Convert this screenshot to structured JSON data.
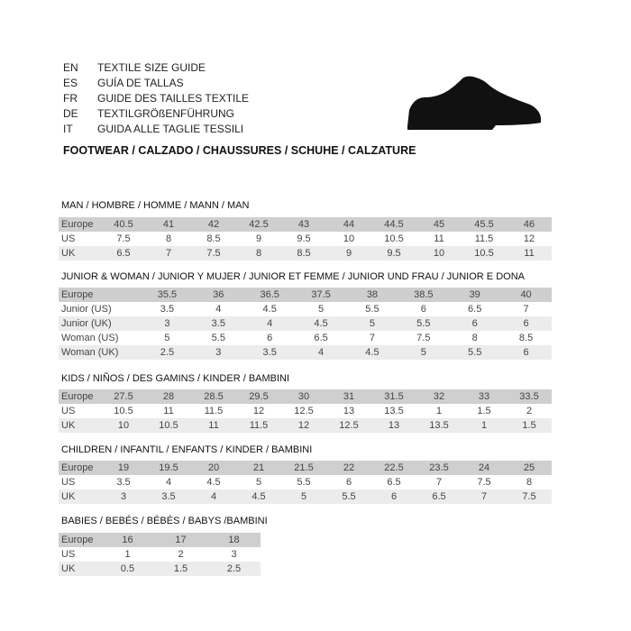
{
  "header": {
    "languages": [
      {
        "code": "EN",
        "text": "TEXTILE SIZE GUIDE"
      },
      {
        "code": "ES",
        "text": "GUÍA DE TALLAS"
      },
      {
        "code": "FR",
        "text": "GUIDE DES TAILLES TEXTILE"
      },
      {
        "code": "DE",
        "text": "TEXTILGRÖßENFÜHRUNG"
      },
      {
        "code": "IT",
        "text": "GUIDA ALLE TAGLIE TESSILI"
      }
    ],
    "footwear": "FOOTWEAR / CALZADO / CHAUSSURES / SCHUHE / CALZATURE",
    "icon": "shoe-icon"
  },
  "sections": [
    {
      "title": "MAN / HOMBRE / HOMME / MANN / MAN",
      "rows": [
        [
          "Europe",
          "40.5",
          "41",
          "42",
          "42.5",
          "43",
          "44",
          "44.5",
          "45",
          "45.5",
          "46"
        ],
        [
          "US",
          "7.5",
          "8",
          "8.5",
          "9",
          "9.5",
          "10",
          "10.5",
          "11",
          "11.5",
          "12"
        ],
        [
          "UK",
          "6.5",
          "7",
          "7.5",
          "8",
          "8.5",
          "9",
          "9.5",
          "10",
          "10.5",
          "11"
        ]
      ]
    },
    {
      "title": "JUNIOR & WOMAN / JUNIOR Y MUJER / JUNIOR ET FEMME / JUNIOR UND FRAU / JUNIOR E DONA",
      "rows": [
        [
          "Europe",
          "35.5",
          "36",
          "36.5",
          "37.5",
          "38",
          "38.5",
          "39",
          "40"
        ],
        [
          "Junior (US)",
          "3.5",
          "4",
          "4.5",
          "5",
          "5.5",
          "6",
          "6.5",
          "7"
        ],
        [
          "Junior (UK)",
          "3",
          "3.5",
          "4",
          "4.5",
          "5",
          "5.5",
          "6",
          "6"
        ],
        [
          "Woman (US)",
          "5",
          "5.5",
          "6",
          "6.5",
          "7",
          "7.5",
          "8",
          "8.5"
        ],
        [
          "Woman (UK)",
          "2.5",
          "3",
          "3.5",
          "4",
          "4.5",
          "5",
          "5.5",
          "6"
        ]
      ]
    },
    {
      "title": "KIDS / NIÑOS / DES GAMINS / KINDER / BAMBINI",
      "rows": [
        [
          "Europe",
          "27.5",
          "28",
          "28.5",
          "29.5",
          "30",
          "31",
          "31.5",
          "32",
          "33",
          "33.5"
        ],
        [
          "US",
          "10.5",
          "11",
          "11.5",
          "12",
          "12.5",
          "13",
          "13.5",
          "1",
          "1.5",
          "2"
        ],
        [
          "UK",
          "10",
          "10.5",
          "11",
          "11.5",
          "12",
          "12.5",
          "13",
          "13.5",
          "1",
          "1.5"
        ]
      ]
    },
    {
      "title": "CHILDREN / INFANTIL / ENFANTS / KINDER / BAMBINI",
      "rows": [
        [
          "Europe",
          "19",
          "19.5",
          "20",
          "21",
          "21.5",
          "22",
          "22.5",
          "23.5",
          "24",
          "25"
        ],
        [
          "US",
          "3.5",
          "4",
          "4.5",
          "5",
          "5.5",
          "6",
          "6.5",
          "7",
          "7.5",
          "8"
        ],
        [
          "UK",
          "3",
          "3.5",
          "4",
          "4.5",
          "5",
          "5.5",
          "6",
          "6.5",
          "7",
          "7.5"
        ]
      ]
    },
    {
      "title": "BABIES  / BEBÉS / BÉBÉS / BABYS /BAMBINI",
      "rows": [
        [
          "Europe",
          "16",
          "17",
          "18"
        ],
        [
          "US",
          "1",
          "2",
          "3"
        ],
        [
          "UK",
          "0.5",
          "1.5",
          "2.5"
        ]
      ]
    }
  ]
}
